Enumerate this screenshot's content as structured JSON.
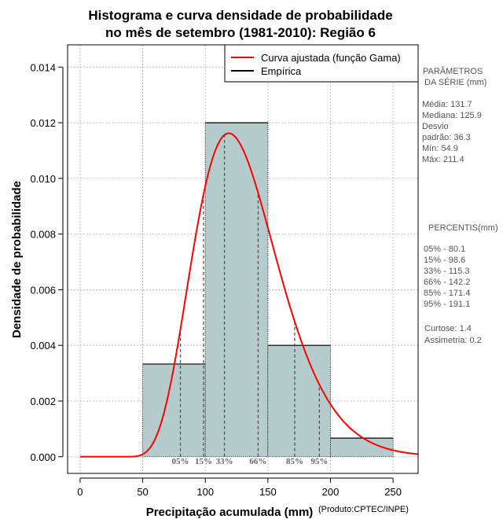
{
  "chart_data": {
    "type": "bar",
    "title_line1": "Histograma e curva densidade de probabilidade",
    "title_line2": "no mês de setembro (1981-2010): Região 6",
    "xlabel": "Precipitação acumulada (mm)",
    "ylabel": "Densidade de probabilidade",
    "credit": "(Produto:CPTEC/INPE)",
    "xlim": [
      -10,
      270
    ],
    "ylim": [
      -0.0006,
      0.0148
    ],
    "x_ticks": [
      0,
      50,
      100,
      150,
      200,
      250
    ],
    "y_ticks": [
      0.0,
      0.002,
      0.004,
      0.006,
      0.008,
      0.01,
      0.012,
      0.014
    ],
    "y_tick_labels": [
      "0.000",
      "0.002",
      "0.004",
      "0.006",
      "0.008",
      "0.010",
      "0.012",
      "0.014"
    ],
    "grid": true,
    "histogram": [
      {
        "x0": 50,
        "x1": 100,
        "density": 0.00333
      },
      {
        "x0": 100,
        "x1": 150,
        "density": 0.012
      },
      {
        "x0": 150,
        "x1": 200,
        "density": 0.004
      },
      {
        "x0": 200,
        "x1": 250,
        "density": 0.000667
      }
    ],
    "fitted_curve": {
      "name": "Curva ajustada (função Gama)",
      "color": "#ff0000",
      "mean": 131.7,
      "sd": 36.3,
      "shift": 30
    },
    "legend": [
      {
        "label": "Curva ajustada (função Gama)",
        "color": "#ff0000"
      },
      {
        "label": "Empírica",
        "color": "#000000"
      }
    ],
    "legend_position": "top-right",
    "percentile_markers": [
      {
        "label": "05%",
        "x": 80.1
      },
      {
        "label": "15%",
        "x": 98.6
      },
      {
        "label": "33%",
        "x": 115.3
      },
      {
        "label": "66%",
        "x": 142.2
      },
      {
        "label": "85%",
        "x": 171.4
      },
      {
        "label": "95%",
        "x": 191.1
      }
    ],
    "bar_color": "#b4cccb"
  },
  "side_panel": {
    "params_title_1": "PARÂMETROS",
    "params_title_2": "DA SÉRIE (mm)",
    "media": "Média:  131.7",
    "mediana": "Mediana:  125.9",
    "desvio_1": "Desvio",
    "desvio_2": "padrão:  36.3",
    "min": "Mín:  54.9",
    "max": "Máx:  211.4",
    "percentis_title": "PERCENTIS(mm)",
    "p05": "05% -  80.1",
    "p15": "15% -  98.6",
    "p33": "33% -  115.3",
    "p66": "66% -  142.2",
    "p85": "85% -  171.4",
    "p95": "95% -  191.1",
    "curtose": "Curtose:  1.4",
    "assimetria": "Assimetria:  0.2"
  }
}
